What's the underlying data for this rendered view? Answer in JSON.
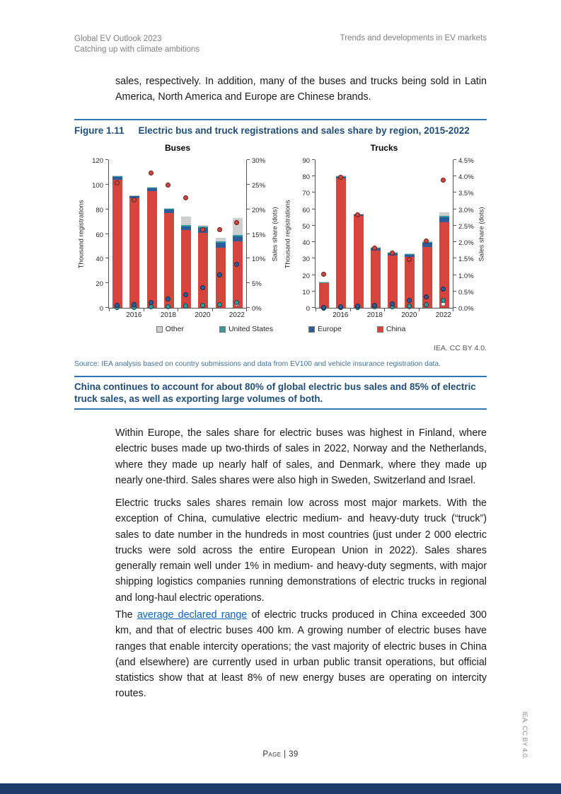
{
  "page": {
    "header": {
      "left_line1": "Global EV Outlook 2023",
      "left_line2": "Catching up with climate ambitions",
      "right": "Trends and developments in EV markets"
    },
    "footer_label": "Page | 39",
    "side_attribution": "IEA. CC BY 4.0."
  },
  "intro_paragraph": "sales, respectively. In addition, many of the buses and trucks being sold in Latin America, North America and Europe are Chinese brands.",
  "figure": {
    "label": "Figure 1.11",
    "title": "Electric bus and truck registrations and sales share by region, 2015-2022",
    "attribution": "IEA. CC BY 4.0.",
    "source": "Source: IEA analysis based on country submissions and data from EV100 and vehicle insurance registration data.",
    "legend": [
      {
        "name": "Other",
        "color": "#cfcfcf"
      },
      {
        "name": "United States",
        "color": "#2f9e9e"
      },
      {
        "name": "Europe",
        "color": "#2c5d9b"
      },
      {
        "name": "China",
        "color": "#d5453d"
      }
    ]
  },
  "callout": "China continues to account for about 80% of global electric bus sales and 85% of electric truck sales, as well as exporting large volumes of both.",
  "body_paragraphs": [
    "Within Europe, the sales share for electric buses was highest in Finland, where electric buses made up two-thirds of sales in 2022, Norway and the Netherlands, where they made up nearly half of sales, and Denmark, where they made up nearly one-third. Sales shares were also high in Sweden, Switzerland and Israel.",
    "Electric trucks sales shares remain low across most major markets. With the exception of China, cumulative electric medium- and heavy-duty truck (“truck”) sales to date number in the hundreds in most countries (just under 2 000 electric trucks were sold across the entire European Union in 2022). Sales shares generally remain well under 1% in medium- and heavy-duty segments, with major shipping logistics companies running demonstrations of electric trucks in regional and long-haul electric operations."
  ],
  "range_paragraph": {
    "before": "The ",
    "link_text": "average declared range",
    "after": " of electric trucks produced in China exceeded 300 km, and that of electric buses 400 km. A growing number of electric buses have ranges that enable intercity operations; the vast majority of electric buses in China (and elsewhere) are currently used in urban public transit operations, but official statistics show that at least 8% of new energy buses are operating on intercity routes."
  },
  "chart_data": [
    {
      "type": "bar",
      "subtype": "stacked-bars-with-share-dots",
      "title": "Buses",
      "x": [
        2015,
        2016,
        2017,
        2018,
        2019,
        2020,
        2021,
        2022
      ],
      "x_ticks": [
        {
          "index": 1,
          "label": "2016"
        },
        {
          "index": 3,
          "label": "2018"
        },
        {
          "index": 5,
          "label": "2020"
        },
        {
          "index": 7,
          "label": "2022"
        }
      ],
      "left_axis": {
        "label": "Thousand registrations",
        "min": 0,
        "max": 120,
        "step": 20,
        "decimals": 0
      },
      "right_axis": {
        "label": "Sales share (dots)",
        "min": 0,
        "max": 30,
        "step": 5,
        "decimals": 0
      },
      "bar_series": [
        {
          "name": "China",
          "values": [
            104,
            89,
            95,
            77,
            63,
            61,
            49,
            54
          ]
        },
        {
          "name": "Europe",
          "values": [
            2,
            1.5,
            2,
            3,
            3,
            4,
            4,
            4
          ]
        },
        {
          "name": "United States",
          "values": [
            0.6,
            0.5,
            0.6,
            0.6,
            1,
            1,
            1,
            1
          ]
        },
        {
          "name": "Other",
          "values": [
            0.6,
            0.5,
            0.6,
            0.6,
            7,
            1,
            3,
            14
          ]
        }
      ],
      "dot_series": [
        {
          "name": "Other",
          "values": [
            0.3,
            0.3,
            0.4,
            0.5,
            0.6,
            0.6,
            0.8,
            1
          ]
        },
        {
          "name": "United States",
          "values": [
            0.2,
            0.2,
            0.3,
            0.4,
            0.5,
            0.6,
            0.8,
            1.2
          ]
        },
        {
          "name": "Europe",
          "values": [
            0.6,
            0.8,
            1.2,
            2,
            2.8,
            4.3,
            6.8,
            9
          ]
        },
        {
          "name": "China",
          "values": [
            25.5,
            22,
            27.5,
            25,
            22.5,
            16,
            16,
            17.5
          ]
        }
      ]
    },
    {
      "type": "bar",
      "subtype": "stacked-bars-with-share-dots",
      "title": "Trucks",
      "x": [
        2015,
        2016,
        2017,
        2018,
        2019,
        2020,
        2021,
        2022
      ],
      "x_ticks": [
        {
          "index": 1,
          "label": "2016"
        },
        {
          "index": 3,
          "label": "2018"
        },
        {
          "index": 5,
          "label": "2020"
        },
        {
          "index": 7,
          "label": "2022"
        }
      ],
      "left_axis": {
        "label": "Thousand registrations",
        "min": 0,
        "max": 90,
        "step": 10,
        "decimals": 0
      },
      "right_axis": {
        "label": "Sales share (dots)",
        "min": 0,
        "max": 4.5,
        "step": 0.5,
        "decimals": 1
      },
      "bar_series": [
        {
          "name": "China",
          "values": [
            15,
            79,
            56,
            35,
            32,
            31,
            37,
            52
          ]
        },
        {
          "name": "Europe",
          "values": [
            0.2,
            0.8,
            0.8,
            1.2,
            1.2,
            1.5,
            2.5,
            3
          ]
        },
        {
          "name": "United States",
          "values": [
            0.1,
            0.2,
            0.2,
            0.3,
            0.3,
            0.3,
            0.6,
            1
          ]
        },
        {
          "name": "Other",
          "values": [
            0.1,
            0.3,
            0.3,
            0.5,
            0.5,
            0.5,
            1,
            2
          ]
        }
      ],
      "dot_series": [
        {
          "name": "Other",
          "values": [
            0.02,
            0.03,
            0.03,
            0.05,
            0.05,
            0.06,
            0.1,
            0.15
          ]
        },
        {
          "name": "United States",
          "values": [
            0.02,
            0.03,
            0.04,
            0.05,
            0.06,
            0.08,
            0.12,
            0.25
          ]
        },
        {
          "name": "Europe",
          "values": [
            0.04,
            0.05,
            0.08,
            0.1,
            0.15,
            0.25,
            0.35,
            0.6
          ]
        },
        {
          "name": "China",
          "values": [
            1.05,
            4.0,
            2.85,
            1.85,
            1.7,
            1.5,
            2.05,
            3.9
          ]
        }
      ]
    }
  ]
}
